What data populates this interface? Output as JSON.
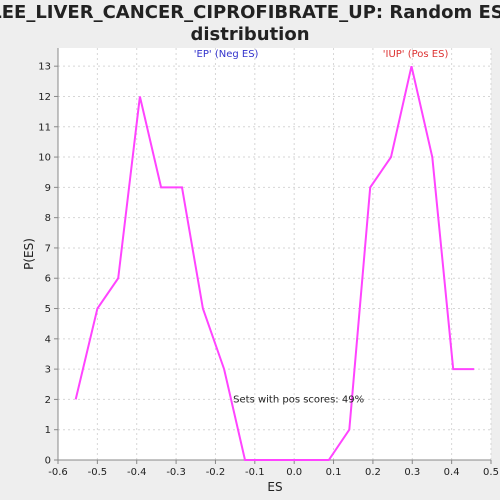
{
  "chart_data": {
    "type": "line",
    "title": "LEE_LIVER_CANCER_CIPROFIBRATE_UP: Random ES distribution",
    "title_lines": [
      "LEE_LIVER_CANCER_CIPROFIBRATE_UP: Random ES",
      "distribution"
    ],
    "xlabel": "ES",
    "ylabel": "P(ES)",
    "xlim": [
      -0.6,
      0.5
    ],
    "ylim": [
      0,
      13.6
    ],
    "xticks": [
      -0.6,
      -0.5,
      -0.4,
      -0.3,
      -0.2,
      -0.1,
      0.0,
      0.1,
      0.2,
      0.3,
      0.4,
      0.5
    ],
    "xtick_labels": [
      "-0.6",
      "-0.5",
      "-0.4",
      "-0.3",
      "-0.2",
      "-0.1",
      "0.0",
      "0.1",
      "0.2",
      "0.3",
      "0.4",
      "0.5"
    ],
    "yticks": [
      0,
      1,
      2,
      3,
      4,
      5,
      6,
      7,
      8,
      9,
      10,
      11,
      12,
      13
    ],
    "ytick_labels": [
      "0",
      "1",
      "2",
      "3",
      "4",
      "5",
      "6",
      "7",
      "8",
      "9",
      "10",
      "11",
      "12",
      "13"
    ],
    "grid": true,
    "series": [
      {
        "color": "#ff44ff",
        "x": [
          -0.555,
          -0.5,
          -0.447,
          -0.392,
          -0.338,
          -0.285,
          -0.232,
          -0.178,
          -0.125,
          -0.072,
          -0.018,
          0.035,
          0.088,
          0.14,
          0.193,
          0.246,
          0.298,
          0.351,
          0.404,
          0.457
        ],
        "y": [
          2,
          5,
          6,
          12,
          9,
          9,
          5,
          3,
          0,
          0,
          0,
          0,
          0,
          1,
          9,
          10,
          13,
          10,
          3,
          3
        ]
      }
    ],
    "annotations": [
      {
        "text": "'EP' (Neg ES)",
        "color": "#3333cc",
        "x": -0.255,
        "y": 13.3
      },
      {
        "text": "'IUP' (Pos ES)",
        "color": "#dd3333",
        "x": 0.225,
        "y": 13.3
      },
      {
        "text": "Sets with pos scores: 49%",
        "color": "#222222",
        "x": -0.155,
        "y": 1.9
      }
    ]
  }
}
